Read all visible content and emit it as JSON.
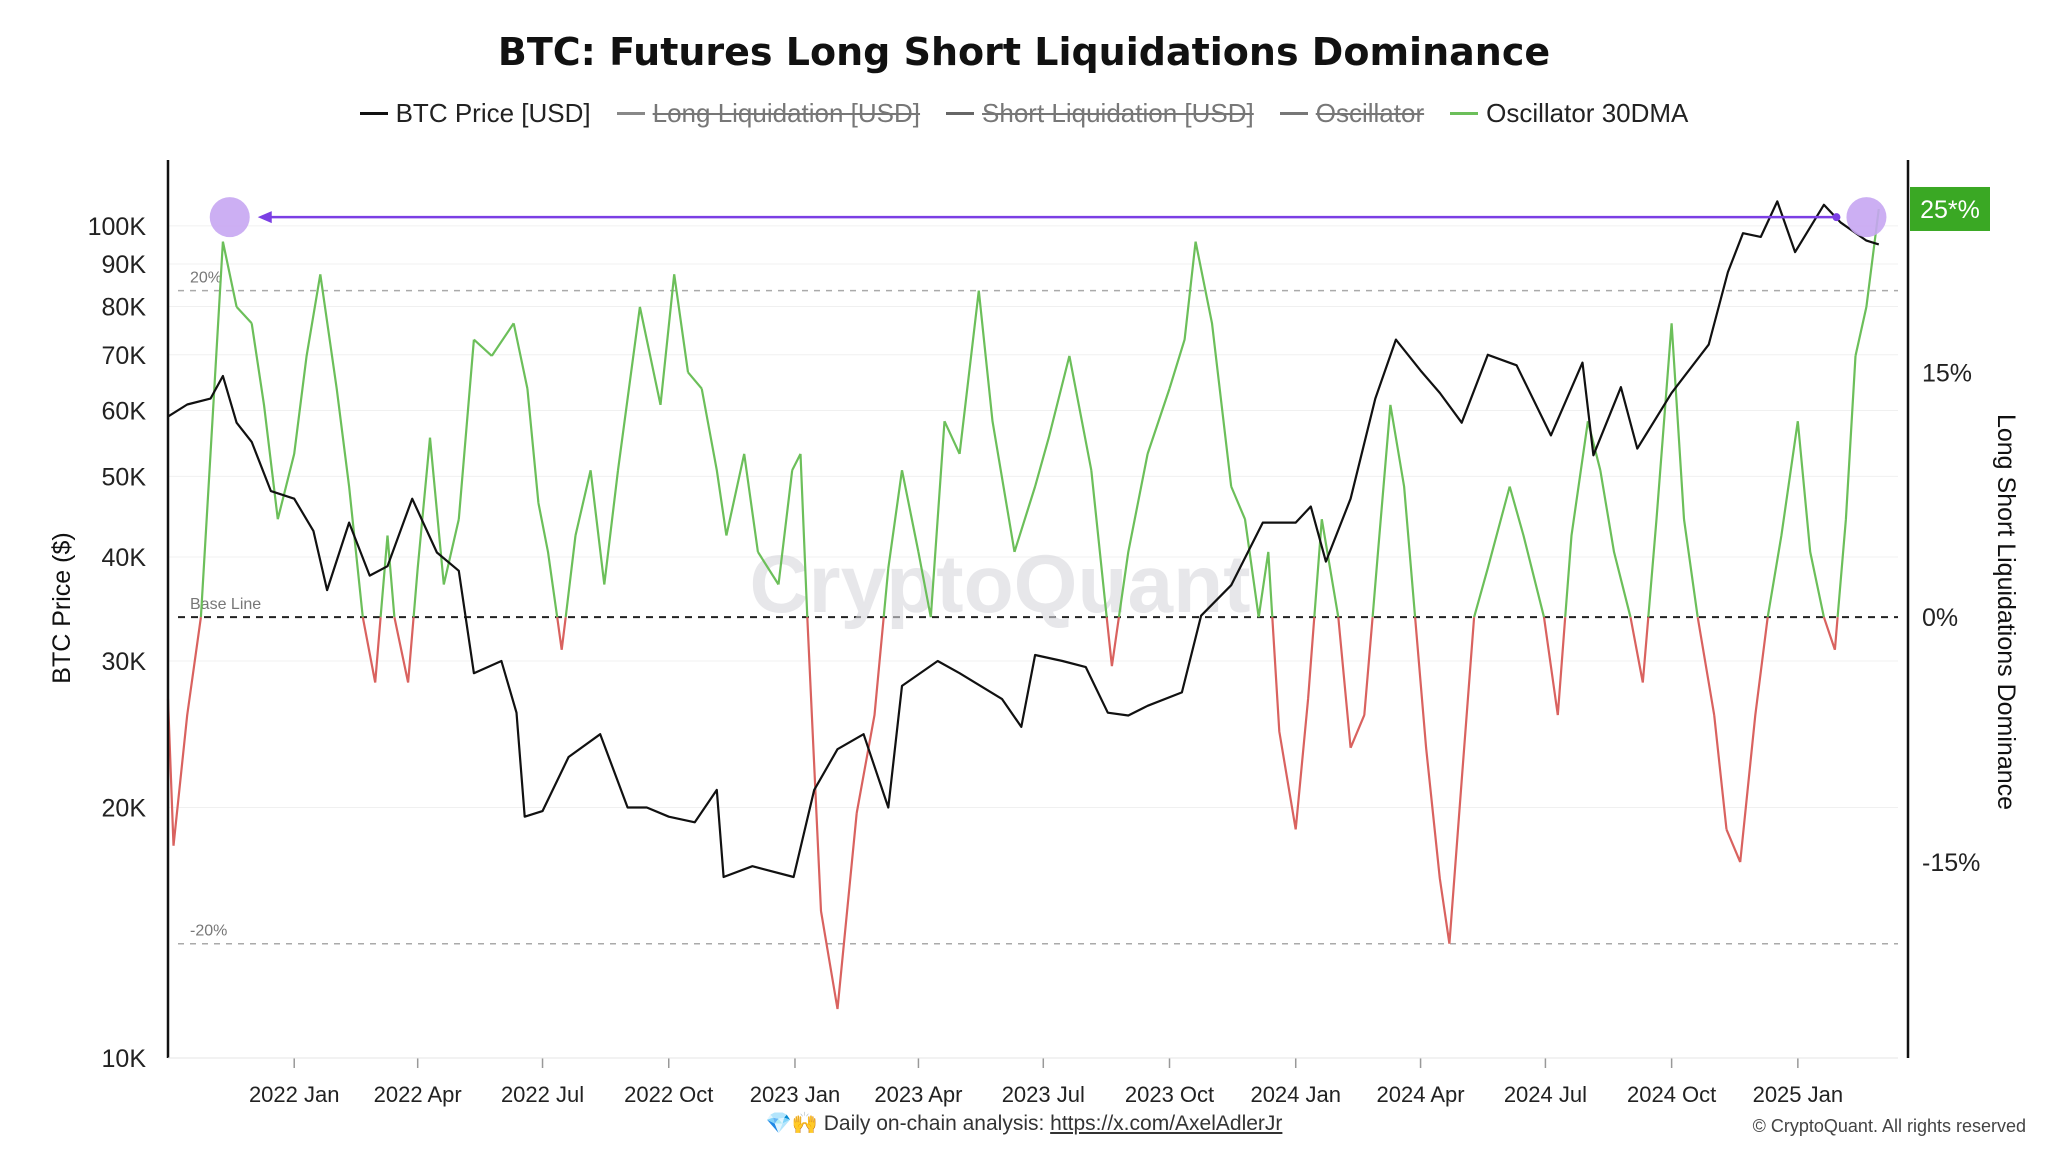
{
  "chart_data": {
    "type": "line",
    "title": "BTC: Futures Long Short Liquidations Dominance",
    "legend": [
      {
        "name": "BTC Price [USD]",
        "color": "#111111",
        "enabled": true
      },
      {
        "name": "Long Liquidation [USD]",
        "color": "#888888",
        "enabled": false
      },
      {
        "name": "Short Liquidation [USD]",
        "color": "#666666",
        "enabled": false
      },
      {
        "name": "Oscillator",
        "color": "#777777",
        "enabled": false
      },
      {
        "name": "Oscillator 30DMA",
        "color": "#6cbf5a",
        "enabled": true
      }
    ],
    "legend_placement": "top-center",
    "x_axis": {
      "range": [
        "2021-10-01",
        "2025-03-15"
      ],
      "ticks": [
        {
          "date": "2022-01-01",
          "label": "2022 Jan"
        },
        {
          "date": "2022-04-01",
          "label": "2022 Apr"
        },
        {
          "date": "2022-07-01",
          "label": "2022 Jul"
        },
        {
          "date": "2022-10-01",
          "label": "2022 Oct"
        },
        {
          "date": "2023-01-01",
          "label": "2023 Jan"
        },
        {
          "date": "2023-04-01",
          "label": "2023 Apr"
        },
        {
          "date": "2023-07-01",
          "label": "2023 Jul"
        },
        {
          "date": "2023-10-01",
          "label": "2023 Oct"
        },
        {
          "date": "2024-01-01",
          "label": "2024 Jan"
        },
        {
          "date": "2024-04-01",
          "label": "2024 Apr"
        },
        {
          "date": "2024-07-01",
          "label": "2024 Jul"
        },
        {
          "date": "2024-10-01",
          "label": "2024 Oct"
        },
        {
          "date": "2025-01-01",
          "label": "2025 Jan"
        }
      ]
    },
    "y_left": {
      "label": "BTC Price ($)",
      "scale": "log",
      "range": [
        10000,
        120000
      ],
      "ticks": [
        {
          "value": 10000,
          "label": "10K"
        },
        {
          "value": 20000,
          "label": "20K"
        },
        {
          "value": 30000,
          "label": "30K"
        },
        {
          "value": 40000,
          "label": "40K"
        },
        {
          "value": 50000,
          "label": "50K"
        },
        {
          "value": 60000,
          "label": "60K"
        },
        {
          "value": 70000,
          "label": "70K"
        },
        {
          "value": 80000,
          "label": "80K"
        },
        {
          "value": 90000,
          "label": "90K"
        },
        {
          "value": 100000,
          "label": "100K"
        }
      ]
    },
    "y_right": {
      "label": "Long Short Liquidations Dominance",
      "unit": "%",
      "range": [
        -27,
        28
      ],
      "ticks": [
        {
          "value": 15,
          "label": "15%"
        },
        {
          "value": 0,
          "label": "0%"
        },
        {
          "value": -15,
          "label": "-15%"
        }
      ]
    },
    "reference_lines": [
      {
        "value": 20,
        "label": "20%",
        "style": "dashed"
      },
      {
        "value": 0,
        "label": "Base Line",
        "style": "dashed"
      },
      {
        "value": -20,
        "label": "-20%",
        "style": "dashed"
      }
    ],
    "current_value_badge": {
      "text": "25*%",
      "value": 25,
      "color": "#3aa824"
    },
    "annotation": {
      "type": "arrow",
      "from_date": "2025-02-20",
      "to_date": "2021-11-15",
      "level": 24.5,
      "marker_color": "#c7a6f2",
      "arrow_color": "#7b3fe4"
    },
    "series": [
      {
        "name": "BTC Price [USD]",
        "axis": "left",
        "color": "#111111",
        "points": [
          [
            "2021-10-01",
            59000
          ],
          [
            "2021-10-15",
            61000
          ],
          [
            "2021-11-01",
            62000
          ],
          [
            "2021-11-10",
            66000
          ],
          [
            "2021-11-20",
            58000
          ],
          [
            "2021-12-01",
            55000
          ],
          [
            "2021-12-15",
            48000
          ],
          [
            "2022-01-01",
            47000
          ],
          [
            "2022-01-15",
            43000
          ],
          [
            "2022-01-25",
            36500
          ],
          [
            "2022-02-10",
            44000
          ],
          [
            "2022-02-25",
            38000
          ],
          [
            "2022-03-10",
            39000
          ],
          [
            "2022-03-28",
            47000
          ],
          [
            "2022-04-15",
            40500
          ],
          [
            "2022-05-01",
            38500
          ],
          [
            "2022-05-12",
            29000
          ],
          [
            "2022-06-01",
            30000
          ],
          [
            "2022-06-12",
            26000
          ],
          [
            "2022-06-18",
            19500
          ],
          [
            "2022-07-01",
            19800
          ],
          [
            "2022-07-20",
            23000
          ],
          [
            "2022-08-12",
            24500
          ],
          [
            "2022-09-01",
            20000
          ],
          [
            "2022-09-15",
            20000
          ],
          [
            "2022-10-01",
            19500
          ],
          [
            "2022-10-20",
            19200
          ],
          [
            "2022-11-05",
            21000
          ],
          [
            "2022-11-10",
            16500
          ],
          [
            "2022-12-01",
            17000
          ],
          [
            "2022-12-31",
            16500
          ],
          [
            "2023-01-15",
            21000
          ],
          [
            "2023-02-01",
            23500
          ],
          [
            "2023-02-20",
            24500
          ],
          [
            "2023-03-10",
            20000
          ],
          [
            "2023-03-20",
            28000
          ],
          [
            "2023-04-15",
            30000
          ],
          [
            "2023-05-01",
            29000
          ],
          [
            "2023-06-01",
            27000
          ],
          [
            "2023-06-15",
            25000
          ],
          [
            "2023-06-25",
            30500
          ],
          [
            "2023-07-15",
            30000
          ],
          [
            "2023-08-01",
            29500
          ],
          [
            "2023-08-17",
            26000
          ],
          [
            "2023-09-01",
            25800
          ],
          [
            "2023-09-15",
            26500
          ],
          [
            "2023-10-10",
            27500
          ],
          [
            "2023-10-24",
            34000
          ],
          [
            "2023-11-15",
            37000
          ],
          [
            "2023-12-08",
            44000
          ],
          [
            "2024-01-01",
            44000
          ],
          [
            "2024-01-12",
            46000
          ],
          [
            "2024-01-23",
            39500
          ],
          [
            "2024-02-10",
            47000
          ],
          [
            "2024-02-28",
            62000
          ],
          [
            "2024-03-14",
            73000
          ],
          [
            "2024-04-01",
            67000
          ],
          [
            "2024-04-15",
            63000
          ],
          [
            "2024-05-01",
            58000
          ],
          [
            "2024-05-20",
            70000
          ],
          [
            "2024-06-10",
            68000
          ],
          [
            "2024-07-05",
            56000
          ],
          [
            "2024-07-28",
            68500
          ],
          [
            "2024-08-05",
            53000
          ],
          [
            "2024-08-25",
            64000
          ],
          [
            "2024-09-06",
            54000
          ],
          [
            "2024-10-01",
            63000
          ],
          [
            "2024-10-28",
            72000
          ],
          [
            "2024-11-11",
            88000
          ],
          [
            "2024-11-22",
            98000
          ],
          [
            "2024-12-05",
            97000
          ],
          [
            "2024-12-17",
            107000
          ],
          [
            "2024-12-30",
            93000
          ],
          [
            "2025-01-20",
            106000
          ],
          [
            "2025-02-01",
            101000
          ],
          [
            "2025-02-20",
            96000
          ],
          [
            "2025-03-01",
            95000
          ]
        ]
      },
      {
        "name": "Oscillator 30DMA",
        "axis": "right",
        "color_positive": "#6cbf5a",
        "color_negative": "#d9625f",
        "points": [
          [
            "2021-10-01",
            -5
          ],
          [
            "2021-10-05",
            -14
          ],
          [
            "2021-10-15",
            -6
          ],
          [
            "2021-10-25",
            0
          ],
          [
            "2021-11-01",
            10
          ],
          [
            "2021-11-10",
            23
          ],
          [
            "2021-11-20",
            19
          ],
          [
            "2021-12-01",
            18
          ],
          [
            "2021-12-10",
            13
          ],
          [
            "2021-12-20",
            6
          ],
          [
            "2022-01-01",
            10
          ],
          [
            "2022-01-10",
            16
          ],
          [
            "2022-01-20",
            21
          ],
          [
            "2022-02-01",
            14
          ],
          [
            "2022-02-10",
            8
          ],
          [
            "2022-02-20",
            0
          ],
          [
            "2022-03-01",
            -4
          ],
          [
            "2022-03-10",
            5
          ],
          [
            "2022-03-15",
            0
          ],
          [
            "2022-03-25",
            -4
          ],
          [
            "2022-04-01",
            3
          ],
          [
            "2022-04-10",
            11
          ],
          [
            "2022-04-20",
            2
          ],
          [
            "2022-05-01",
            6
          ],
          [
            "2022-05-12",
            17
          ],
          [
            "2022-05-25",
            16
          ],
          [
            "2022-06-10",
            18
          ],
          [
            "2022-06-20",
            14
          ],
          [
            "2022-06-28",
            7
          ],
          [
            "2022-07-05",
            4
          ],
          [
            "2022-07-15",
            -2
          ],
          [
            "2022-07-25",
            5
          ],
          [
            "2022-08-05",
            9
          ],
          [
            "2022-08-15",
            2
          ],
          [
            "2022-08-25",
            9
          ],
          [
            "2022-09-10",
            19
          ],
          [
            "2022-09-25",
            13
          ],
          [
            "2022-10-05",
            21
          ],
          [
            "2022-10-15",
            15
          ],
          [
            "2022-10-25",
            14
          ],
          [
            "2022-11-05",
            9
          ],
          [
            "2022-11-12",
            5
          ],
          [
            "2022-11-25",
            10
          ],
          [
            "2022-12-05",
            4
          ],
          [
            "2022-12-20",
            2
          ],
          [
            "2022-12-30",
            9
          ],
          [
            "2023-01-05",
            10
          ],
          [
            "2023-01-10",
            0
          ],
          [
            "2023-01-20",
            -18
          ],
          [
            "2023-02-01",
            -24
          ],
          [
            "2023-02-15",
            -12
          ],
          [
            "2023-02-28",
            -6
          ],
          [
            "2023-03-10",
            3
          ],
          [
            "2023-03-20",
            9
          ],
          [
            "2023-04-01",
            4
          ],
          [
            "2023-04-10",
            0
          ],
          [
            "2023-04-20",
            12
          ],
          [
            "2023-05-01",
            10
          ],
          [
            "2023-05-15",
            20
          ],
          [
            "2023-05-25",
            12
          ],
          [
            "2023-06-10",
            4
          ],
          [
            "2023-06-25",
            8
          ],
          [
            "2023-07-05",
            11
          ],
          [
            "2023-07-20",
            16
          ],
          [
            "2023-08-05",
            9
          ],
          [
            "2023-08-20",
            -3
          ],
          [
            "2023-09-01",
            4
          ],
          [
            "2023-09-15",
            10
          ],
          [
            "2023-10-01",
            14
          ],
          [
            "2023-10-12",
            17
          ],
          [
            "2023-10-20",
            23
          ],
          [
            "2023-11-01",
            18
          ],
          [
            "2023-11-15",
            8
          ],
          [
            "2023-11-25",
            6
          ],
          [
            "2023-12-05",
            0
          ],
          [
            "2023-12-12",
            4
          ],
          [
            "2023-12-20",
            -7
          ],
          [
            "2024-01-01",
            -13
          ],
          [
            "2024-01-10",
            -5
          ],
          [
            "2024-01-20",
            6
          ],
          [
            "2024-02-01",
            0
          ],
          [
            "2024-02-10",
            -8
          ],
          [
            "2024-02-20",
            -6
          ],
          [
            "2024-03-01",
            4
          ],
          [
            "2024-03-10",
            13
          ],
          [
            "2024-03-20",
            8
          ],
          [
            "2024-03-28",
            0
          ],
          [
            "2024-04-05",
            -8
          ],
          [
            "2024-04-15",
            -16
          ],
          [
            "2024-04-22",
            -20
          ],
          [
            "2024-05-01",
            -10
          ],
          [
            "2024-05-10",
            0
          ],
          [
            "2024-05-20",
            3
          ],
          [
            "2024-06-05",
            8
          ],
          [
            "2024-06-15",
            5
          ],
          [
            "2024-06-30",
            0
          ],
          [
            "2024-07-10",
            -6
          ],
          [
            "2024-07-20",
            5
          ],
          [
            "2024-08-01",
            12
          ],
          [
            "2024-08-10",
            9
          ],
          [
            "2024-08-20",
            4
          ],
          [
            "2024-09-01",
            0
          ],
          [
            "2024-09-10",
            -4
          ],
          [
            "2024-09-20",
            6
          ],
          [
            "2024-10-01",
            18
          ],
          [
            "2024-10-10",
            6
          ],
          [
            "2024-10-20",
            0
          ],
          [
            "2024-11-01",
            -6
          ],
          [
            "2024-11-10",
            -13
          ],
          [
            "2024-11-20",
            -15
          ],
          [
            "2024-12-01",
            -6
          ],
          [
            "2024-12-10",
            0
          ],
          [
            "2024-12-20",
            5
          ],
          [
            "2025-01-01",
            12
          ],
          [
            "2025-01-10",
            4
          ],
          [
            "2025-01-20",
            0
          ],
          [
            "2025-01-28",
            -2
          ],
          [
            "2025-02-05",
            6
          ],
          [
            "2025-02-12",
            16
          ],
          [
            "2025-02-20",
            19
          ],
          [
            "2025-03-01",
            25
          ]
        ]
      }
    ]
  },
  "branding": {
    "watermark": "CryptoQuant",
    "footer_text": "Daily on-chain analysis: ",
    "footer_icons": "💎🙌",
    "footer_link": "https://x.com/AxelAdlerJr",
    "copyright": "© CryptoQuant. All rights reserved"
  }
}
